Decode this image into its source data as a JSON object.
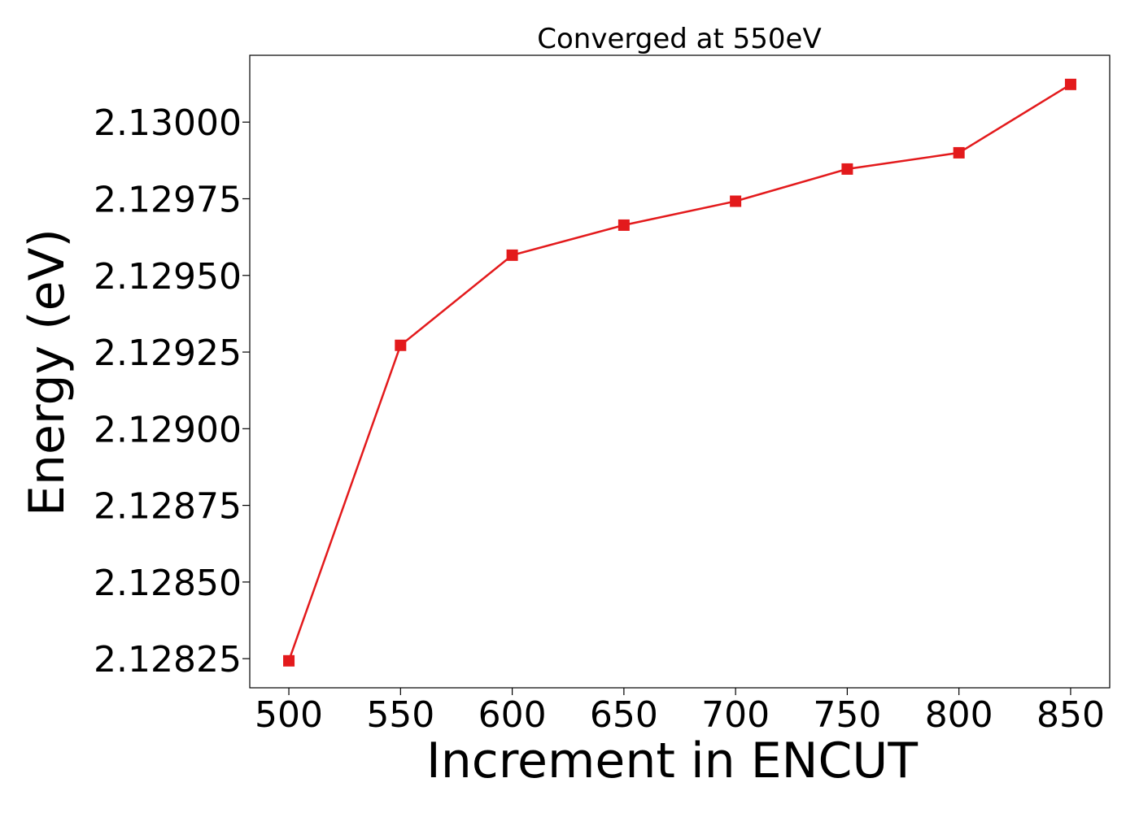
{
  "chart_data": {
    "type": "line",
    "title": "Converged at 550eV",
    "xlabel": "Increment in ENCUT",
    "ylabel": "Energy (eV)",
    "x": [
      500,
      550,
      600,
      650,
      700,
      750,
      800,
      850
    ],
    "series": [
      {
        "values": [
          2.128243,
          2.129272,
          2.129566,
          2.129664,
          2.129742,
          2.129847,
          2.1299,
          2.130123
        ],
        "color": "#e31a1c",
        "marker": "square"
      }
    ],
    "xticks": [
      "500",
      "550",
      "600",
      "650",
      "700",
      "750",
      "800",
      "850"
    ],
    "yticks": [
      "2.12825",
      "2.12850",
      "2.12875",
      "2.12900",
      "2.12925",
      "2.12950",
      "2.12975",
      "2.13000"
    ],
    "xlim": [
      482.5,
      867.5
    ],
    "ylim": [
      2.128155,
      2.130218
    ],
    "grid": false,
    "legend": "none"
  }
}
